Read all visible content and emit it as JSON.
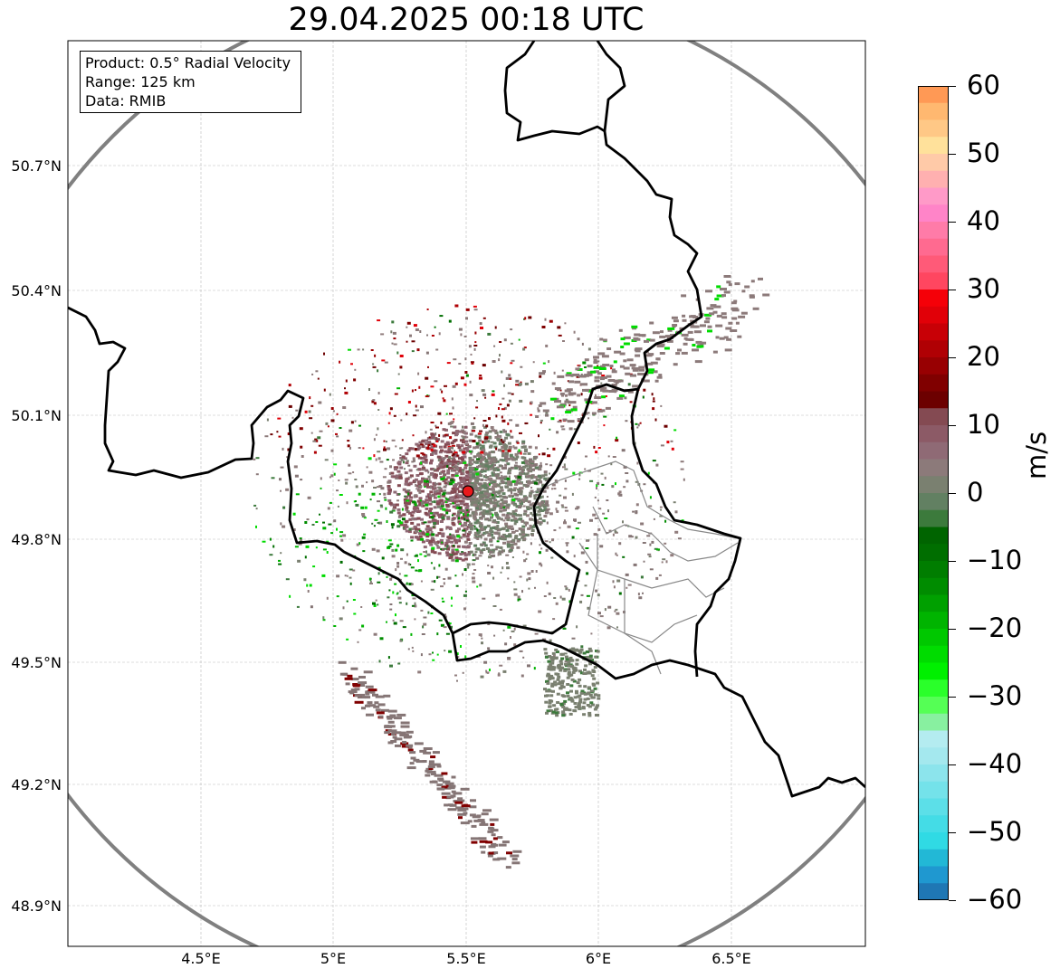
{
  "title": "29.04.2025 00:18 UTC",
  "info": {
    "product": "Product: 0.5° Radial Velocity",
    "range": "Range: 125 km",
    "data": "Data: RMIB"
  },
  "axes": {
    "lat_ticks": [
      "50.7°N",
      "50.4°N",
      "50.1°N",
      "49.8°N",
      "49.5°N",
      "49.2°N",
      "48.9°N"
    ],
    "lon_ticks": [
      "4.5°E",
      "5°E",
      "5.5°E",
      "6°E",
      "6.5°E"
    ]
  },
  "colorbar": {
    "unit": "m/s",
    "ticks": [
      "60",
      "50",
      "40",
      "30",
      "20",
      "10",
      "0",
      "−10",
      "−20",
      "−30",
      "−40",
      "−50",
      "−60"
    ],
    "range": [
      -60,
      60
    ],
    "colors": [
      "#ff9955",
      "#ffb870",
      "#ffc886",
      "#ffe19b",
      "#ffcaa8",
      "#ffb0b0",
      "#ff9ac8",
      "#ff84c8",
      "#ff7ba8",
      "#ff6a90",
      "#ff5a78",
      "#ff4660",
      "#f50008",
      "#e10008",
      "#c80006",
      "#b00004",
      "#980002",
      "#800000",
      "#6c0000",
      "#844a52",
      "#8c5a66",
      "#8f6a75",
      "#8c7a7a",
      "#7a8070",
      "#628062",
      "#3c7a3c",
      "#006400",
      "#006e00",
      "#007d00",
      "#008c00",
      "#00a000",
      "#00b400",
      "#00c800",
      "#00dc00",
      "#00f000",
      "#2aff2a",
      "#55ff55",
      "#88f0a0",
      "#b4ecf0",
      "#a4e8ee",
      "#8ce4ec",
      "#74e2ea",
      "#5cdfe8",
      "#44dce6",
      "#30dae4",
      "#22b8d6",
      "#1f98d0",
      "#1f77b4"
    ]
  },
  "radar_site": {
    "color": "#e8191c"
  }
}
